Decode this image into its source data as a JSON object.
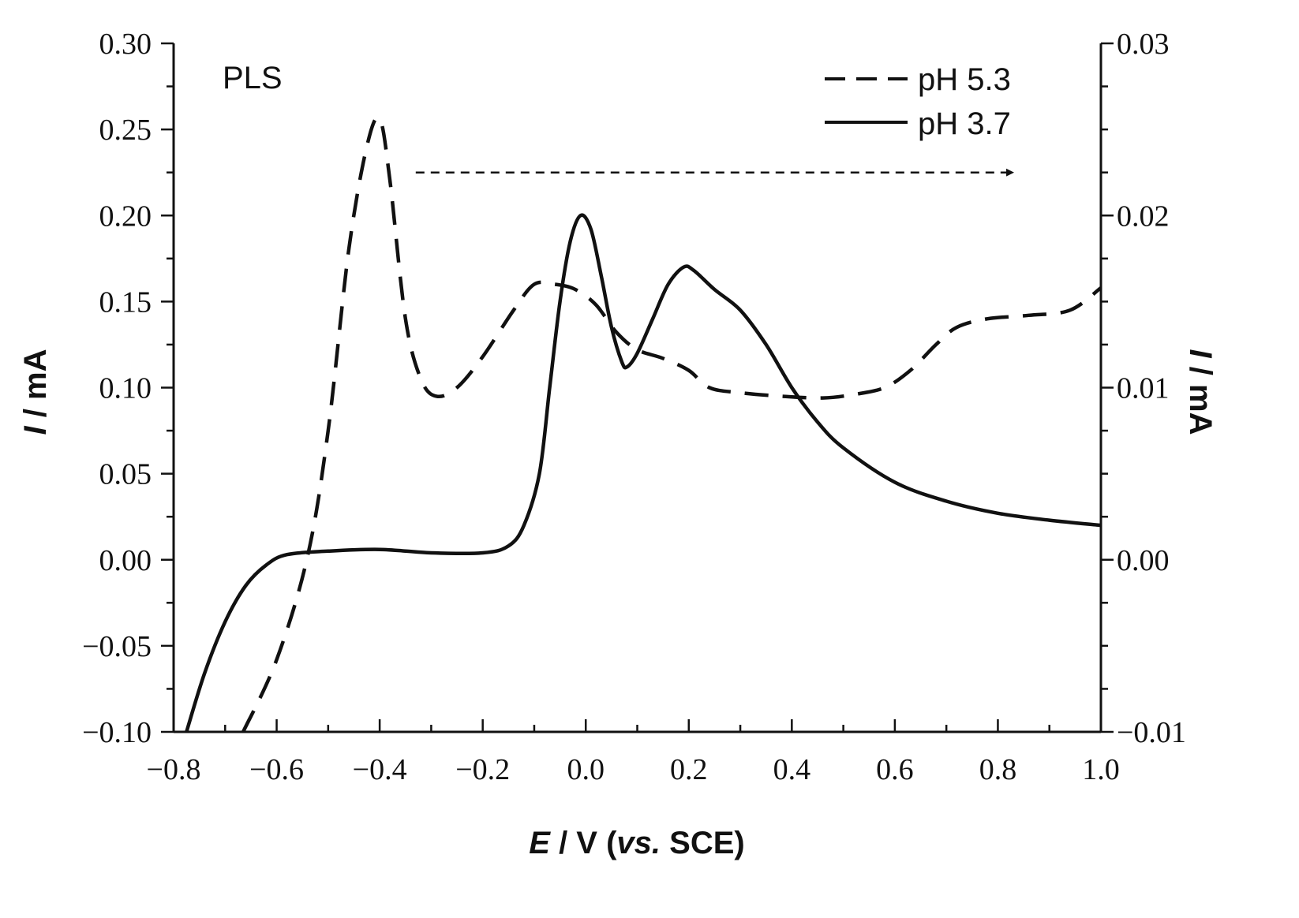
{
  "chart_data": {
    "type": "line",
    "panel_label": "PLS",
    "xlabel": {
      "italic": "E",
      "rest": " / V (",
      "vs": "vs.",
      "end": " SCE)"
    },
    "ylabel_left": {
      "italic": "I",
      "rest": " / mA"
    },
    "ylabel_right": {
      "italic": "I",
      "rest": " / mA"
    },
    "xlim": [
      -0.8,
      1.0
    ],
    "ylim_left": [
      -0.1,
      0.3
    ],
    "ylim_right": [
      -0.01,
      0.03
    ],
    "x_ticks": [
      "−0.8",
      "−0.6",
      "−0.4",
      "−0.2",
      "0.0",
      "0.2",
      "0.4",
      "0.6",
      "0.8",
      "1.0"
    ],
    "x_tick_values": [
      -0.8,
      -0.6,
      -0.4,
      -0.2,
      0.0,
      0.2,
      0.4,
      0.6,
      0.8,
      1.0
    ],
    "y_left_ticks": [
      "−0.10",
      "−0.05",
      "0.00",
      "0.05",
      "0.10",
      "0.15",
      "0.20",
      "0.25",
      "0.30"
    ],
    "y_left_tick_values": [
      -0.1,
      -0.05,
      0.0,
      0.05,
      0.1,
      0.15,
      0.2,
      0.25,
      0.3
    ],
    "y_right_ticks": [
      "−0.01",
      "0.00",
      "0.01",
      "0.02",
      "0.03"
    ],
    "y_right_tick_values": [
      -0.01,
      0.0,
      0.01,
      0.02,
      0.03
    ],
    "legend_position": "top-right",
    "axis_arrow": {
      "points_to": "right axis",
      "y_value_left_units": 0.225,
      "x_start": -0.33,
      "x_end": 0.83
    },
    "series": [
      {
        "name": "pH 5.3",
        "style": "dashed",
        "axis": "right",
        "points": [
          [
            -0.665,
            -0.01
          ],
          [
            -0.6,
            -0.0058
          ],
          [
            -0.54,
            0.0002
          ],
          [
            -0.5,
            0.0075
          ],
          [
            -0.46,
            0.018
          ],
          [
            -0.425,
            0.024
          ],
          [
            -0.4,
            0.0256
          ],
          [
            -0.38,
            0.022
          ],
          [
            -0.35,
            0.014
          ],
          [
            -0.32,
            0.0105
          ],
          [
            -0.29,
            0.0095
          ],
          [
            -0.25,
            0.01
          ],
          [
            -0.2,
            0.0118
          ],
          [
            -0.14,
            0.0145
          ],
          [
            -0.1,
            0.016
          ],
          [
            -0.06,
            0.016
          ],
          [
            -0.02,
            0.0157
          ],
          [
            0.02,
            0.0148
          ],
          [
            0.06,
            0.0132
          ],
          [
            0.1,
            0.0122
          ],
          [
            0.15,
            0.0117
          ],
          [
            0.2,
            0.011
          ],
          [
            0.24,
            0.01
          ],
          [
            0.3,
            0.0097
          ],
          [
            0.38,
            0.0095
          ],
          [
            0.46,
            0.0094
          ],
          [
            0.52,
            0.0096
          ],
          [
            0.58,
            0.01
          ],
          [
            0.63,
            0.011
          ],
          [
            0.68,
            0.0125
          ],
          [
            0.72,
            0.0135
          ],
          [
            0.78,
            0.014
          ],
          [
            0.86,
            0.0142
          ],
          [
            0.94,
            0.0145
          ],
          [
            1.0,
            0.0158
          ]
        ]
      },
      {
        "name": "pH 3.7",
        "style": "solid",
        "axis": "left",
        "points": [
          [
            -0.775,
            -0.1
          ],
          [
            -0.74,
            -0.066
          ],
          [
            -0.7,
            -0.036
          ],
          [
            -0.66,
            -0.015
          ],
          [
            -0.62,
            -0.003
          ],
          [
            -0.58,
            0.003
          ],
          [
            -0.5,
            0.005
          ],
          [
            -0.4,
            0.006
          ],
          [
            -0.3,
            0.004
          ],
          [
            -0.2,
            0.004
          ],
          [
            -0.15,
            0.008
          ],
          [
            -0.12,
            0.02
          ],
          [
            -0.09,
            0.05
          ],
          [
            -0.07,
            0.1
          ],
          [
            -0.05,
            0.15
          ],
          [
            -0.03,
            0.185
          ],
          [
            -0.01,
            0.2
          ],
          [
            0.01,
            0.192
          ],
          [
            0.03,
            0.165
          ],
          [
            0.05,
            0.135
          ],
          [
            0.07,
            0.115
          ],
          [
            0.08,
            0.112
          ],
          [
            0.1,
            0.12
          ],
          [
            0.13,
            0.14
          ],
          [
            0.16,
            0.16
          ],
          [
            0.19,
            0.17
          ],
          [
            0.21,
            0.168
          ],
          [
            0.25,
            0.157
          ],
          [
            0.3,
            0.145
          ],
          [
            0.35,
            0.125
          ],
          [
            0.4,
            0.1
          ],
          [
            0.45,
            0.08
          ],
          [
            0.5,
            0.065
          ],
          [
            0.6,
            0.045
          ],
          [
            0.7,
            0.034
          ],
          [
            0.8,
            0.027
          ],
          [
            0.9,
            0.023
          ],
          [
            1.0,
            0.02
          ]
        ]
      }
    ]
  }
}
